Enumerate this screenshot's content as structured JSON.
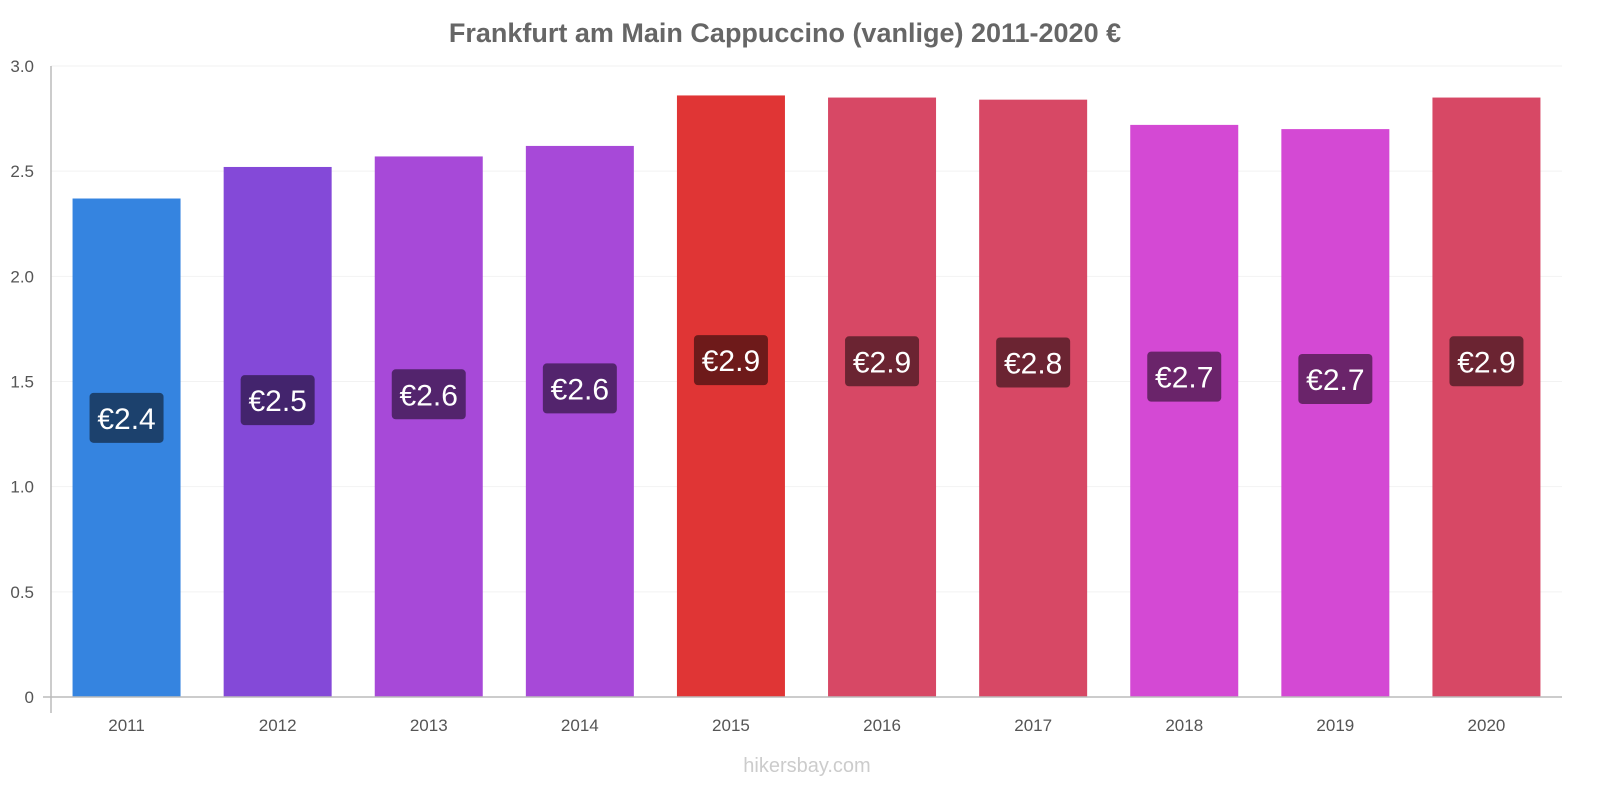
{
  "chart_data": {
    "type": "bar",
    "title": "Frankfurt am Main Cappuccino (vanlige) 2011-2020 €",
    "xlabel": "",
    "ylabel": "",
    "ylim": [
      0,
      3.0
    ],
    "yticks": [
      "0",
      "0.5",
      "1.0",
      "1.5",
      "2.0",
      "2.5",
      "3.0"
    ],
    "grid": true,
    "categories": [
      "2011",
      "2012",
      "2013",
      "2014",
      "2015",
      "2016",
      "2017",
      "2018",
      "2019",
      "2020"
    ],
    "values": [
      2.37,
      2.52,
      2.57,
      2.62,
      2.86,
      2.85,
      2.84,
      2.72,
      2.7,
      2.85
    ],
    "data_labels": [
      "€2.4",
      "€2.5",
      "€2.6",
      "€2.6",
      "€2.9",
      "€2.9",
      "€2.8",
      "€2.7",
      "€2.7",
      "€2.9"
    ],
    "bar_colors": [
      "#3584e0",
      "#8449d8",
      "#a749d8",
      "#a749d8",
      "#e03535",
      "#d74865",
      "#d74865",
      "#d449d4",
      "#d449d4",
      "#d74865"
    ],
    "label_colors": [
      "#1c416d",
      "#43246d",
      "#53246d",
      "#53246d",
      "#6e1a1a",
      "#6b2432",
      "#6b2432",
      "#6a246a",
      "#6a246a",
      "#6b2432"
    ]
  },
  "watermark": "hikersbay.com"
}
